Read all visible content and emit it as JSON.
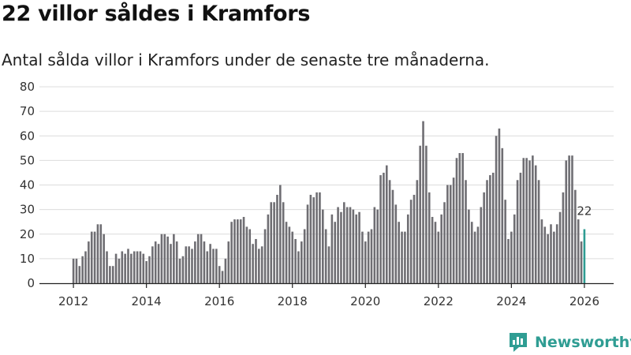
{
  "title": "22 villor såldes i Kramfors",
  "subtitle": "Antal sålda villor i Kramfors under de senaste tre månaderna.",
  "brand": "Newsworthy",
  "colors": {
    "bar": "#6f6e73",
    "highlight": "#2e9c92",
    "grid": "#dcdcdc",
    "brand": "#2f9d93"
  },
  "chart_data": {
    "type": "bar",
    "title": "22 villor såldes i Kramfors",
    "xlabel": "",
    "ylabel": "",
    "ylim": [
      0,
      80
    ],
    "yticks": [
      0,
      10,
      20,
      30,
      40,
      50,
      60,
      70,
      80
    ],
    "x_start": {
      "year": 2012,
      "month": 1
    },
    "xticks": [
      "2012",
      "2014",
      "2016",
      "2018",
      "2020",
      "2022",
      "2024",
      "2026"
    ],
    "grid": true,
    "highlight_label": "22",
    "values": [
      10,
      10,
      7,
      11,
      13,
      17,
      21,
      21,
      24,
      24,
      20,
      13,
      7,
      7,
      12,
      10,
      13,
      12,
      14,
      12,
      13,
      13,
      13,
      12,
      9,
      11,
      15,
      17,
      16,
      20,
      20,
      19,
      16,
      20,
      17,
      10,
      11,
      15,
      15,
      14,
      17,
      20,
      20,
      17,
      13,
      16,
      14,
      14,
      7,
      5,
      10,
      17,
      25,
      26,
      26,
      26,
      27,
      23,
      22,
      16,
      18,
      14,
      15,
      22,
      28,
      33,
      33,
      36,
      40,
      33,
      25,
      23,
      21,
      18,
      13,
      17,
      22,
      32,
      36,
      35,
      37,
      37,
      30,
      22,
      15,
      28,
      25,
      31,
      29,
      33,
      31,
      31,
      30,
      28,
      29,
      21,
      17,
      21,
      22,
      31,
      30,
      44,
      45,
      48,
      42,
      38,
      32,
      25,
      21,
      21,
      28,
      34,
      36,
      42,
      56,
      66,
      56,
      37,
      27,
      25,
      21,
      28,
      33,
      40,
      40,
      43,
      51,
      53,
      53,
      42,
      30,
      25,
      21,
      23,
      31,
      37,
      42,
      44,
      45,
      60,
      63,
      55,
      34,
      18,
      21,
      28,
      42,
      45,
      51,
      51,
      50,
      52,
      48,
      42,
      26,
      23,
      20,
      24,
      21,
      24,
      29,
      37,
      50,
      52,
      52,
      38,
      26,
      17,
      22
    ]
  }
}
